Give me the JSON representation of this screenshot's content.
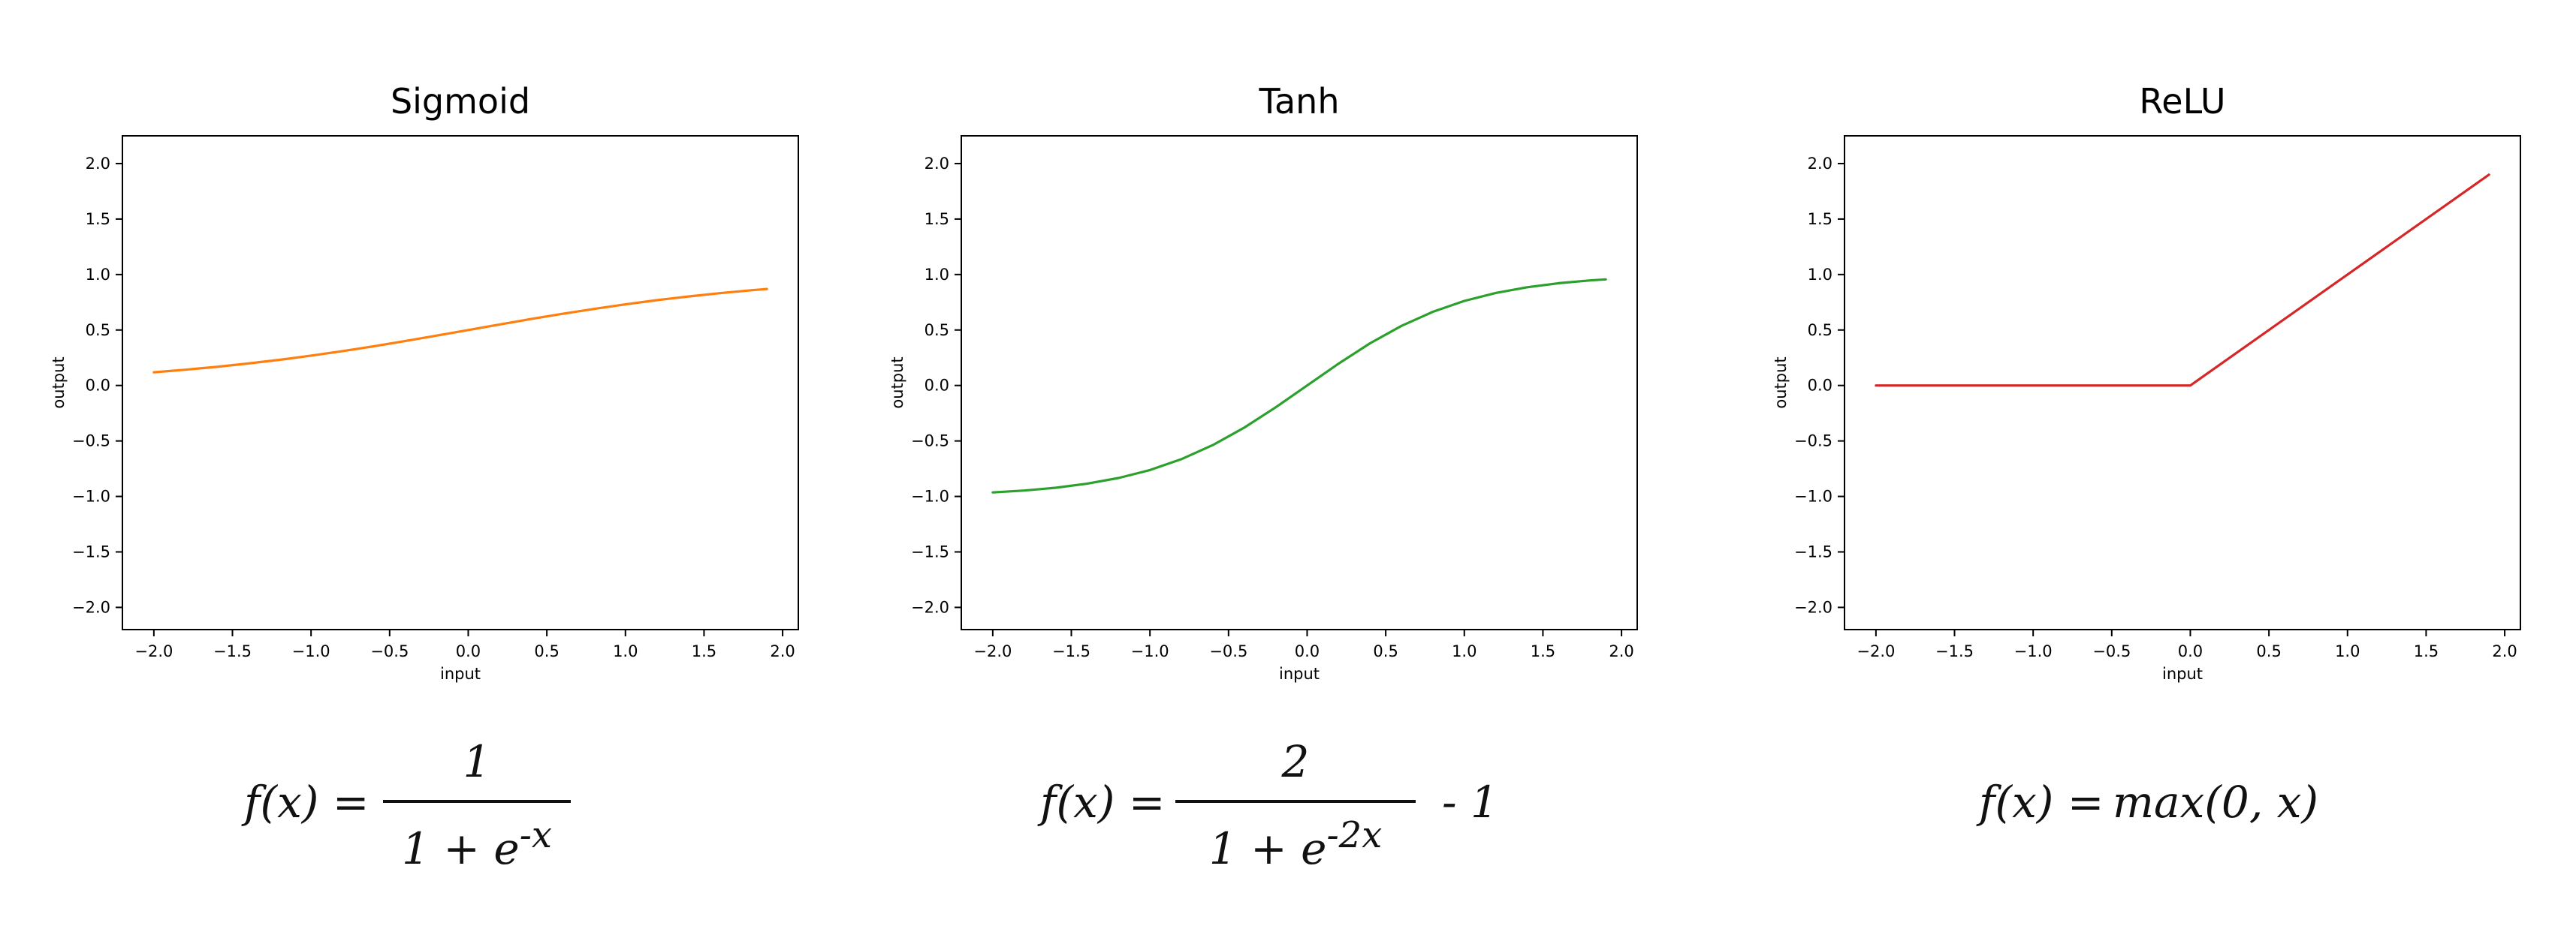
{
  "chart_data": [
    {
      "type": "line",
      "title": "Sigmoid",
      "xlabel": "input",
      "ylabel": "output",
      "xlim": [
        -2.2,
        2.1
      ],
      "ylim": [
        -2.2,
        2.25
      ],
      "xticks": [
        "−2.0",
        "−1.5",
        "−1.0",
        "−0.5",
        "0.0",
        "0.5",
        "1.0",
        "1.5",
        "2.0"
      ],
      "yticks": [
        "−2.0",
        "−1.5",
        "−1.0",
        "−0.5",
        "0.0",
        "0.5",
        "1.0",
        "1.5",
        "2.0"
      ],
      "grid": false,
      "color": "#ff7f0e",
      "series": [
        {
          "x": [
            -2.0,
            -1.8,
            -1.6,
            -1.4,
            -1.2,
            -1.0,
            -0.8,
            -0.6,
            -0.4,
            -0.2,
            0.0,
            0.2,
            0.4,
            0.6,
            0.8,
            1.0,
            1.2,
            1.4,
            1.6,
            1.8,
            1.9
          ],
          "values": [
            0.119,
            0.142,
            0.168,
            0.198,
            0.231,
            0.269,
            0.31,
            0.354,
            0.401,
            0.45,
            0.5,
            0.55,
            0.599,
            0.646,
            0.69,
            0.731,
            0.769,
            0.802,
            0.832,
            0.858,
            0.87
          ]
        }
      ],
      "formula": {
        "lhs": "f(x) =",
        "numerator": "1",
        "denominator": "1 + e",
        "exponent": "-x",
        "suffix": ""
      }
    },
    {
      "type": "line",
      "title": "Tanh",
      "xlabel": "input",
      "ylabel": "output",
      "xlim": [
        -2.2,
        2.1
      ],
      "ylim": [
        -2.2,
        2.25
      ],
      "xticks": [
        "−2.0",
        "−1.5",
        "−1.0",
        "−0.5",
        "0.0",
        "0.5",
        "1.0",
        "1.5",
        "2.0"
      ],
      "yticks": [
        "−2.0",
        "−1.5",
        "−1.0",
        "−0.5",
        "0.0",
        "0.5",
        "1.0",
        "1.5",
        "2.0"
      ],
      "grid": false,
      "color": "#2ca02c",
      "series": [
        {
          "x": [
            -2.0,
            -1.8,
            -1.6,
            -1.4,
            -1.2,
            -1.0,
            -0.8,
            -0.6,
            -0.4,
            -0.2,
            0.0,
            0.2,
            0.4,
            0.6,
            0.8,
            1.0,
            1.2,
            1.4,
            1.6,
            1.8,
            1.9
          ],
          "values": [
            -0.964,
            -0.947,
            -0.922,
            -0.885,
            -0.834,
            -0.762,
            -0.664,
            -0.537,
            -0.38,
            -0.197,
            0.0,
            0.197,
            0.38,
            0.537,
            0.664,
            0.762,
            0.834,
            0.885,
            0.922,
            0.947,
            0.956
          ]
        }
      ],
      "formula": {
        "lhs": "f(x) =",
        "numerator": "2",
        "denominator": "1 + e",
        "exponent": "-2x",
        "suffix": "- 1"
      }
    },
    {
      "type": "line",
      "title": "ReLU",
      "xlabel": "input",
      "ylabel": "output",
      "xlim": [
        -2.2,
        2.1
      ],
      "ylim": [
        -2.2,
        2.25
      ],
      "xticks": [
        "−2.0",
        "−1.5",
        "−1.0",
        "−0.5",
        "0.0",
        "0.5",
        "1.0",
        "1.5",
        "2.0"
      ],
      "yticks": [
        "−2.0",
        "−1.5",
        "−1.0",
        "−0.5",
        "0.0",
        "0.5",
        "1.0",
        "1.5",
        "2.0"
      ],
      "grid": false,
      "color": "#d62728",
      "series": [
        {
          "x": [
            -2.0,
            0.0,
            1.9
          ],
          "values": [
            0.0,
            0.0,
            1.9
          ]
        }
      ],
      "formula": {
        "lhs": "f(x) =",
        "rhs": "max(0, x)"
      }
    }
  ]
}
